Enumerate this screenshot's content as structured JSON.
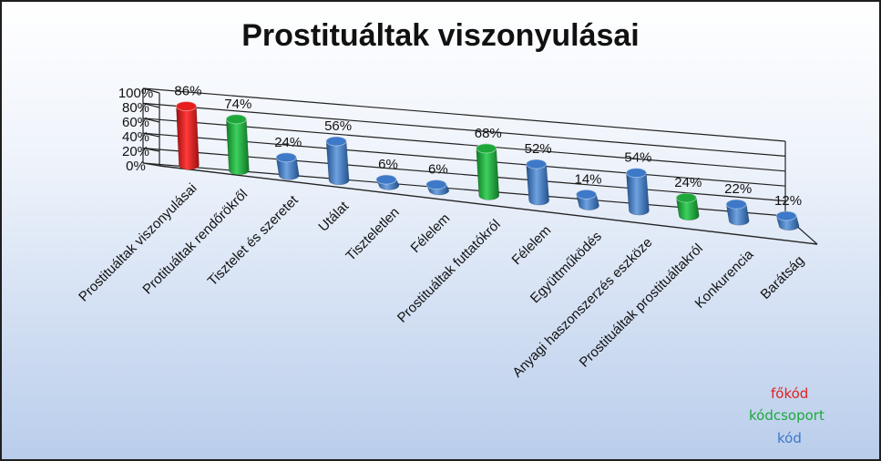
{
  "chart_data": {
    "type": "bar",
    "title": "Prostituáltak viszonyulásai",
    "categories": [
      "Prostituáltak viszonyulásai",
      "Protituáltak rendőrökről",
      "Tisztelet és szeretet",
      "Utálat",
      "Tiszteletlen",
      "Félelem",
      "Prostituáltak futtatókról",
      "Félelem",
      "Együttműködés",
      "Anyagi haszonszerzés eszköze",
      "Prostituáltak prostituáltakról",
      "Konkurencia",
      "Barátság"
    ],
    "values": [
      86,
      74,
      24,
      56,
      6,
      6,
      68,
      52,
      14,
      54,
      24,
      22,
      12
    ],
    "value_labels": [
      "86%",
      "74%",
      "24%",
      "56%",
      "6%",
      "6%",
      "68%",
      "52%",
      "14%",
      "54%",
      "24%",
      "22%",
      "12%"
    ],
    "categories_type": [
      "fokod",
      "kodcsoport",
      "kod",
      "kod",
      "kod",
      "kod",
      "kodcsoport",
      "kod",
      "kod",
      "kod",
      "kodcsoport",
      "kod",
      "kod"
    ],
    "yticks": [
      "0%",
      "20%",
      "40%",
      "60%",
      "80%",
      "100%"
    ],
    "ylim": [
      0,
      100
    ],
    "grid": true,
    "legend_position": "bottom-right",
    "colors": {
      "fokod": "#e61e1e",
      "kodcsoport": "#1ea83c",
      "kod": "#3d79c8"
    }
  },
  "legend": [
    {
      "label": "főkód",
      "color": "#e61e1e"
    },
    {
      "label": "kódcsoport",
      "color": "#1ea83c"
    },
    {
      "label": "kód",
      "color": "#3d79c8"
    }
  ]
}
